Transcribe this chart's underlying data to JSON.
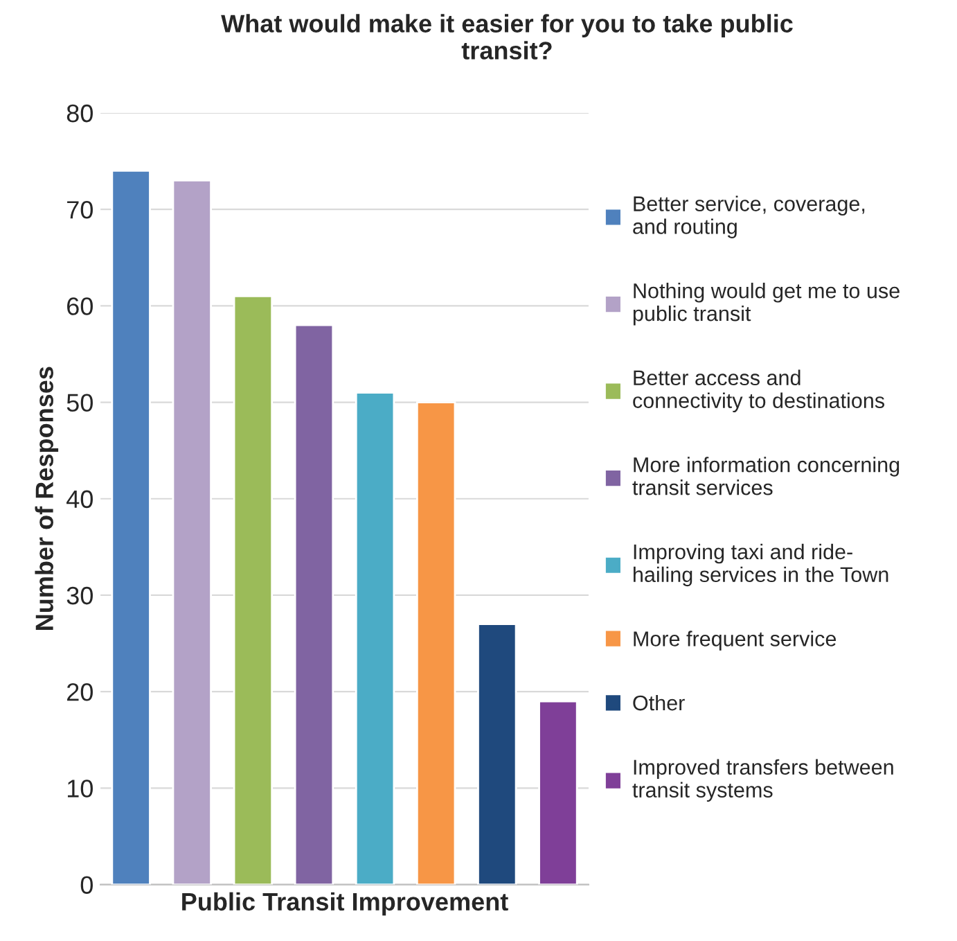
{
  "chart_data": {
    "type": "bar",
    "title": "What would make it easier for you to take public\ntransit?",
    "xlabel": "Public Transit Improvement",
    "ylabel": "Number of Responses",
    "categories": [
      null,
      null,
      null,
      null,
      null,
      null,
      null,
      null
    ],
    "series": [
      {
        "name": "Better service, coverage,\nand routing",
        "color": "#4f81bd",
        "values": [
          74,
          null,
          null,
          null,
          null,
          null,
          null,
          null
        ]
      },
      {
        "name": "Nothing would get me to use\npublic transit",
        "color": "#b3a2c7",
        "values": [
          null,
          73,
          null,
          null,
          null,
          null,
          null,
          null
        ]
      },
      {
        "name": "Better access and\nconnectivity to destinations",
        "color": "#9bbb59",
        "values": [
          null,
          null,
          61,
          null,
          null,
          null,
          null,
          null
        ]
      },
      {
        "name": "More information concerning\ntransit services",
        "color": "#8064a2",
        "values": [
          null,
          null,
          null,
          58,
          null,
          null,
          null,
          null
        ]
      },
      {
        "name": "Improving taxi and ride-\nhailing services in the Town",
        "color": "#4bacc6",
        "values": [
          null,
          null,
          null,
          null,
          51,
          null,
          null,
          null
        ]
      },
      {
        "name": "More frequent service",
        "color": "#f79646",
        "values": [
          null,
          null,
          null,
          null,
          null,
          50,
          null,
          null
        ]
      },
      {
        "name": "Other",
        "color": "#1f497d",
        "values": [
          null,
          null,
          null,
          null,
          null,
          null,
          27,
          null
        ]
      },
      {
        "name": "Improved transfers between\ntransit systems",
        "color": "#7f3f98",
        "values": [
          null,
          null,
          null,
          null,
          null,
          null,
          null,
          19
        ]
      }
    ],
    "ylim": [
      0,
      80
    ],
    "yticks": [
      0,
      10,
      20,
      30,
      40,
      50,
      60,
      70,
      80
    ],
    "grid": "y",
    "legend": "right",
    "tick_labels": "y"
  }
}
